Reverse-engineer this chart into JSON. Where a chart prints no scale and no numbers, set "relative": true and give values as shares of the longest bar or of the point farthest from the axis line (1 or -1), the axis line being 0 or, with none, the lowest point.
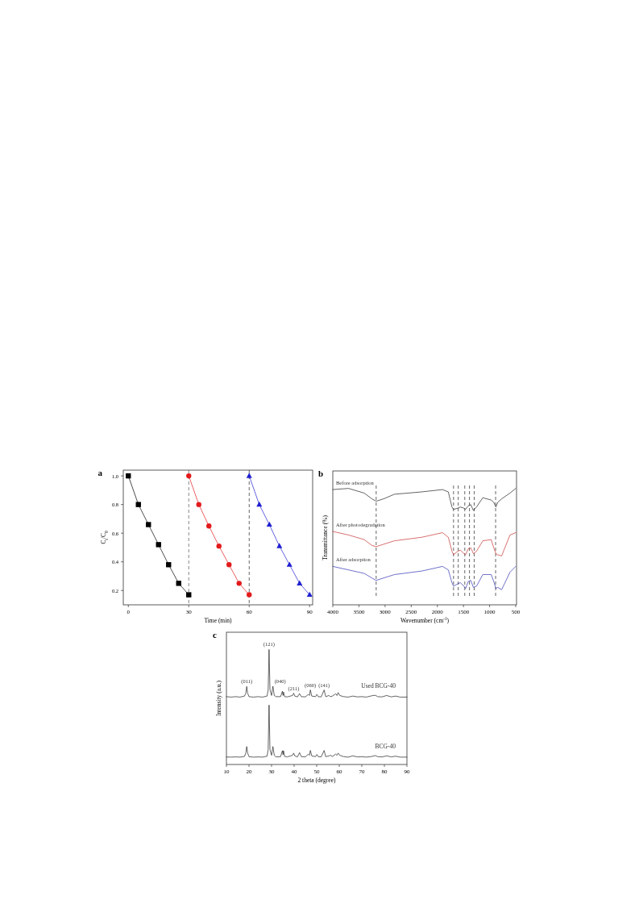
{
  "chart_data": [
    {
      "type": "line",
      "title": "a",
      "xlabel": "Time (min)",
      "ylabel": "C$_{t}$/C$_{0}$",
      "xlim": [
        -2.5,
        91.5
      ],
      "ylim": [
        0.1,
        1.04
      ],
      "xticks": [
        0,
        30,
        60,
        90
      ],
      "yticks": [
        {
          "value": 0.2,
          "label": "0.2"
        },
        {
          "value": 0.4,
          "label": "0.4"
        },
        {
          "value": 0.6,
          "label": "0.6"
        },
        {
          "value": 0.8,
          "label": "0.8"
        },
        {
          "value": 1.0,
          "label": "1.0"
        }
      ],
      "line_style": "solid",
      "ref_lines": [
        {
          "axis": "x",
          "value": 30,
          "color": "#555555",
          "line_style": "dashed"
        },
        {
          "axis": "x",
          "value": 60,
          "color": "#222222",
          "line_style": "dashed"
        }
      ],
      "series": [
        {
          "color": "#000000",
          "marker": "square",
          "x": [
            0,
            5,
            10,
            15,
            20,
            25,
            30
          ],
          "values": [
            1.0,
            0.8,
            0.66,
            0.52,
            0.38,
            0.25,
            0.17
          ]
        },
        {
          "color": "#e31a1c",
          "marker": "circle",
          "x": [
            30,
            35,
            40,
            45,
            50,
            55,
            60
          ],
          "values": [
            1.0,
            0.8,
            0.65,
            0.51,
            0.38,
            0.25,
            0.17
          ]
        },
        {
          "color": "#1f1fd0",
          "marker": "triangle",
          "x": [
            60,
            65,
            70,
            75,
            80,
            85,
            90
          ],
          "values": [
            1.0,
            0.8,
            0.66,
            0.51,
            0.38,
            0.25,
            0.17
          ]
        }
      ]
    },
    {
      "type": "line",
      "title": "b",
      "xlabel": "Wavenumber (cm$^{-1}$)",
      "ylabel": "Transmittance (%)",
      "relative": true,
      "tick_labels": "x",
      "xlim": [
        4000,
        485
      ],
      "xticks": [
        4000,
        3500,
        3000,
        2500,
        2000,
        1500,
        1000,
        500
      ],
      "line_style": "solid",
      "ref_lines": [
        {
          "axis": "x",
          "value": 3170,
          "color": "#222222",
          "line_style": "dashed"
        },
        {
          "axis": "x",
          "value": 1690,
          "color": "#222222",
          "line_style": "dashed"
        },
        {
          "axis": "x",
          "value": 1600,
          "color": "#222222",
          "line_style": "dashed"
        },
        {
          "axis": "x",
          "value": 1475,
          "color": "#222222",
          "line_style": "dashed"
        },
        {
          "axis": "x",
          "value": 1385,
          "color": "#222222",
          "line_style": "dashed"
        },
        {
          "axis": "x",
          "value": 1295,
          "color": "#222222",
          "line_style": "dashed"
        },
        {
          "axis": "x",
          "value": 885,
          "color": "#222222",
          "line_style": "dashed"
        }
      ],
      "series": [
        {
          "name": "Before adsorption",
          "color": "#222222",
          "x": [
            4000,
            3700,
            3400,
            3250,
            3170,
            3030,
            2820,
            2300,
            1900,
            1790,
            1720,
            1690,
            1610,
            1560,
            1490,
            1460,
            1410,
            1360,
            1310,
            1250,
            1130,
            970,
            920,
            880,
            845,
            770,
            610,
            500
          ],
          "values": [
            0.99,
            1.0,
            0.96,
            0.91,
            0.89,
            0.91,
            0.95,
            0.97,
            0.99,
            0.97,
            0.84,
            0.82,
            0.83,
            0.84,
            0.83,
            0.82,
            0.85,
            0.86,
            0.81,
            0.84,
            0.92,
            0.9,
            0.88,
            0.84,
            0.88,
            0.91,
            0.96,
            1.0
          ]
        },
        {
          "name": "After photodegradation",
          "color": "#c83232",
          "x": [
            4000,
            3700,
            3400,
            3250,
            3170,
            3030,
            2820,
            2300,
            1900,
            1790,
            1720,
            1690,
            1610,
            1560,
            1490,
            1460,
            1410,
            1360,
            1310,
            1250,
            1130,
            970,
            920,
            880,
            845,
            770,
            610,
            500
          ],
          "values": [
            0.63,
            0.6,
            0.56,
            0.51,
            0.5,
            0.52,
            0.55,
            0.58,
            0.62,
            0.58,
            0.46,
            0.43,
            0.46,
            0.47,
            0.44,
            0.43,
            0.48,
            0.49,
            0.44,
            0.46,
            0.55,
            0.56,
            0.49,
            0.44,
            0.43,
            0.42,
            0.6,
            0.62
          ]
        },
        {
          "name": "After adsorption",
          "color": "#3232b4",
          "x": [
            4000,
            3700,
            3400,
            3250,
            3170,
            3030,
            2820,
            2300,
            1900,
            1790,
            1720,
            1690,
            1610,
            1560,
            1490,
            1460,
            1410,
            1360,
            1310,
            1250,
            1130,
            970,
            920,
            880,
            845,
            770,
            610,
            500
          ],
          "values": [
            0.33,
            0.3,
            0.27,
            0.23,
            0.21,
            0.23,
            0.26,
            0.29,
            0.33,
            0.3,
            0.19,
            0.16,
            0.18,
            0.19,
            0.16,
            0.14,
            0.2,
            0.21,
            0.15,
            0.16,
            0.26,
            0.26,
            0.2,
            0.14,
            0.15,
            0.13,
            0.28,
            0.33
          ]
        }
      ]
    },
    {
      "type": "line",
      "title": "c",
      "xlabel": "2 theta (degree)",
      "ylabel": "Intensity (a.u.)",
      "relative": true,
      "tick_labels": "x",
      "xlim": [
        10,
        90
      ],
      "xticks": [
        10,
        20,
        30,
        40,
        50,
        60,
        70,
        80,
        90
      ],
      "line_style": "solid",
      "annotations": [
        {
          "text": "(011)",
          "x": 19,
          "y": 0.678
        },
        {
          "text": "(121)",
          "x": 28.9,
          "y": 1.0
        },
        {
          "text": "(040)",
          "x": 30.6,
          "y": 0.68
        },
        {
          "text": "(211)",
          "x": 39.8,
          "y": 0.62
        },
        {
          "text": "(060)",
          "x": 47.2,
          "y": 0.648
        },
        {
          "text": "(141)",
          "x": 53.3,
          "y": 0.648
        }
      ],
      "series": [
        {
          "name": "Used BCG-40",
          "color": "#222222",
          "x": [
            10,
            12,
            14,
            16,
            18,
            18.6,
            19,
            19.4,
            20,
            22,
            24,
            26,
            28,
            28.5,
            28.9,
            29.3,
            30,
            30.6,
            31.2,
            32,
            34,
            34.8,
            35.1,
            35.3,
            35.8,
            37,
            39.3,
            39.8,
            40.3,
            41.5,
            42.4,
            43.2,
            45,
            46.3,
            46.8,
            47.2,
            47.8,
            49.5,
            50.1,
            50.7,
            52,
            53.3,
            54,
            55.5,
            56,
            57,
            58.4,
            59,
            59.5,
            60.2,
            62,
            64,
            66,
            68,
            70,
            72,
            74.5,
            76,
            77,
            79,
            81,
            83,
            85,
            87,
            90
          ],
          "values": [
            0.59,
            0.586,
            0.59,
            0.586,
            0.595,
            0.62,
            0.678,
            0.62,
            0.59,
            0.586,
            0.59,
            0.586,
            0.595,
            0.65,
            1.0,
            0.65,
            0.6,
            0.68,
            0.6,
            0.59,
            0.59,
            0.637,
            0.6,
            0.63,
            0.59,
            0.588,
            0.6,
            0.62,
            0.595,
            0.588,
            0.616,
            0.59,
            0.588,
            0.61,
            0.6,
            0.648,
            0.595,
            0.59,
            0.609,
            0.59,
            0.588,
            0.648,
            0.59,
            0.6,
            0.59,
            0.595,
            0.615,
            0.6,
            0.625,
            0.6,
            0.59,
            0.586,
            0.595,
            0.588,
            0.59,
            0.586,
            0.598,
            0.602,
            0.59,
            0.588,
            0.6,
            0.588,
            0.595,
            0.586,
            0.586
          ]
        },
        {
          "name": "BCG-40",
          "color": "#222222",
          "x": [
            10,
            12,
            14,
            16,
            18,
            18.6,
            19,
            19.4,
            20,
            22,
            24,
            26,
            28,
            28.5,
            28.9,
            29.3,
            30,
            30.6,
            31.2,
            32,
            34,
            34.8,
            35.1,
            35.3,
            35.8,
            37,
            39.3,
            39.8,
            40.3,
            41.5,
            42.4,
            43.2,
            45,
            46.3,
            46.8,
            47.2,
            47.8,
            49.5,
            50.1,
            50.7,
            52,
            53.3,
            54,
            55.5,
            56,
            57,
            58.4,
            59,
            59.5,
            60.2,
            62,
            64,
            66,
            68,
            70,
            72,
            74.5,
            76,
            77,
            79,
            81,
            83,
            85,
            87,
            90
          ],
          "values": [
            0.065,
            0.064,
            0.066,
            0.064,
            0.07,
            0.1,
            0.156,
            0.1,
            0.068,
            0.064,
            0.066,
            0.064,
            0.072,
            0.13,
            0.517,
            0.13,
            0.08,
            0.156,
            0.08,
            0.066,
            0.068,
            0.12,
            0.085,
            0.12,
            0.07,
            0.066,
            0.08,
            0.099,
            0.075,
            0.066,
            0.103,
            0.068,
            0.066,
            0.09,
            0.08,
            0.122,
            0.075,
            0.068,
            0.087,
            0.068,
            0.066,
            0.122,
            0.068,
            0.075,
            0.08,
            0.07,
            0.09,
            0.08,
            0.099,
            0.08,
            0.068,
            0.064,
            0.075,
            0.066,
            0.068,
            0.064,
            0.07,
            0.078,
            0.068,
            0.066,
            0.075,
            0.066,
            0.072,
            0.064,
            0.064
          ]
        }
      ]
    }
  ]
}
